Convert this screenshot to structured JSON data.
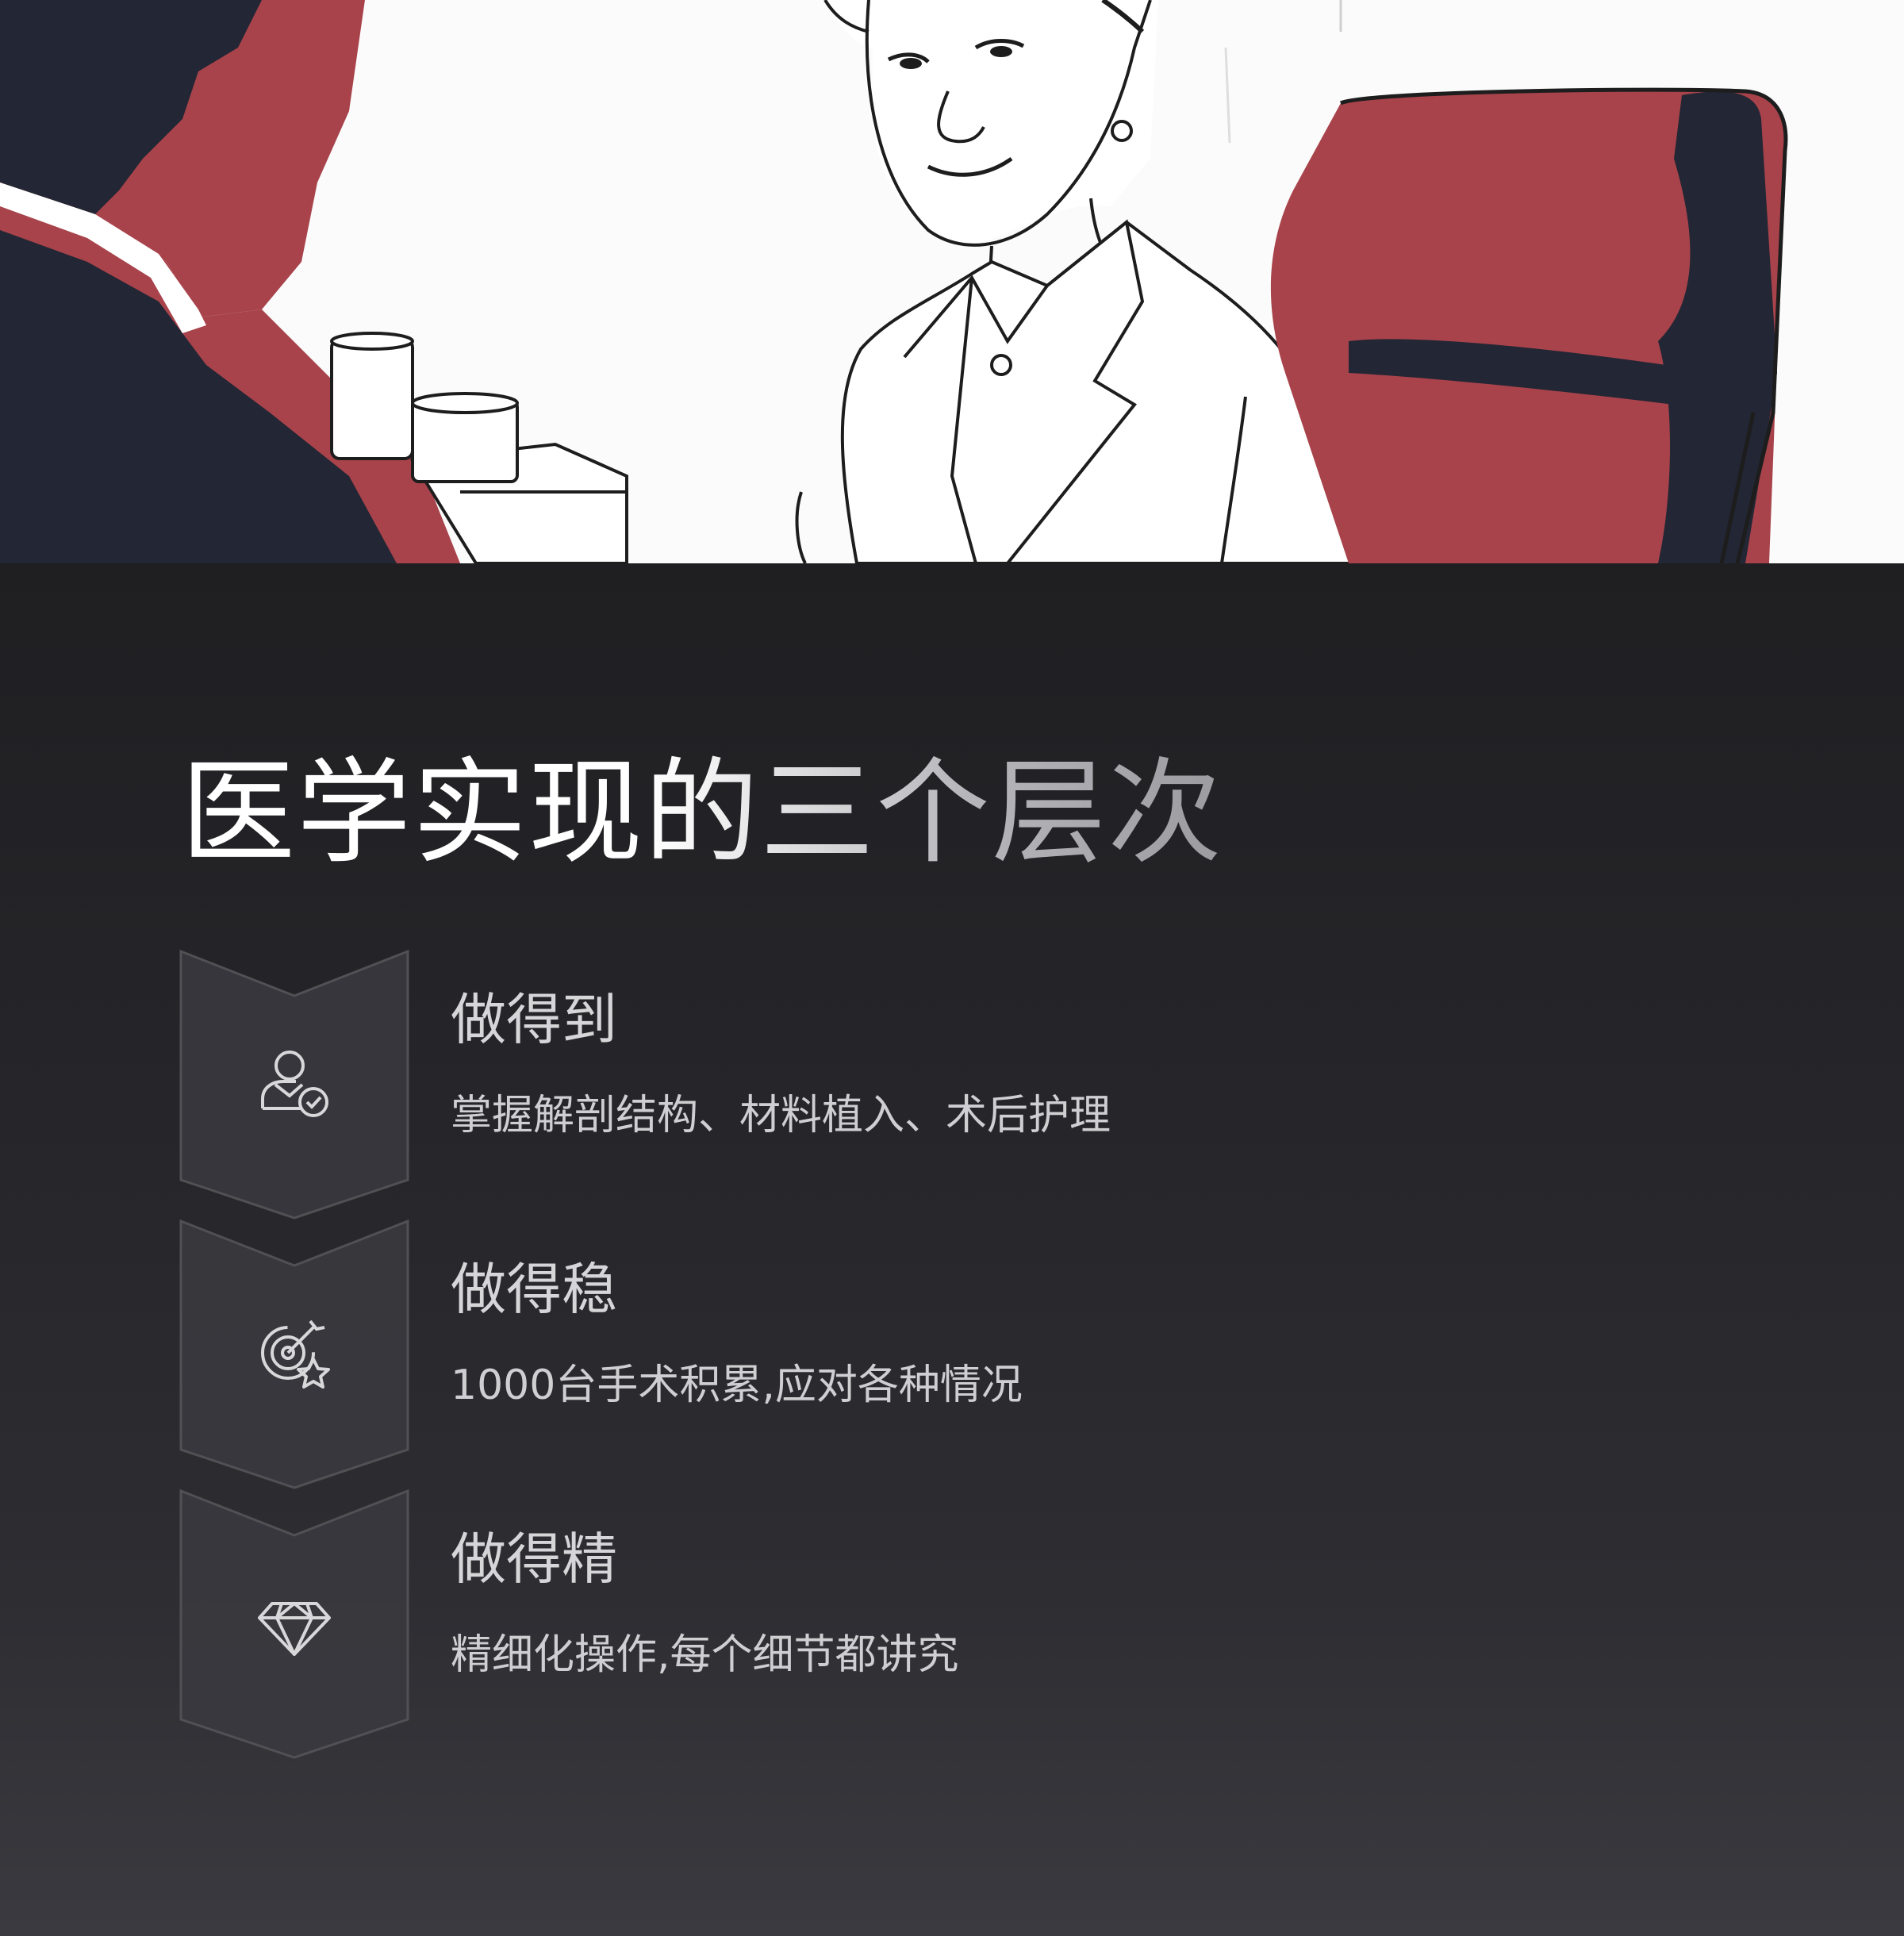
{
  "hero": {
    "image": "illustration-consultation"
  },
  "section": {
    "title": "医学实现的三个层次",
    "levels": [
      {
        "icon": "user-check-icon",
        "title": "做得到",
        "description": "掌握解剖结构、材料植入、术后护理"
      },
      {
        "icon": "target-star-icon",
        "title": "做得稳",
        "description": "1000台手术积累,应对各种情况"
      },
      {
        "icon": "diamond-icon",
        "title": "做得精",
        "description": "精细化操作,每个细节都讲究"
      }
    ]
  },
  "colors": {
    "accent_red": "#a8434b",
    "dark_navy": "#232634",
    "background": "#222226"
  }
}
